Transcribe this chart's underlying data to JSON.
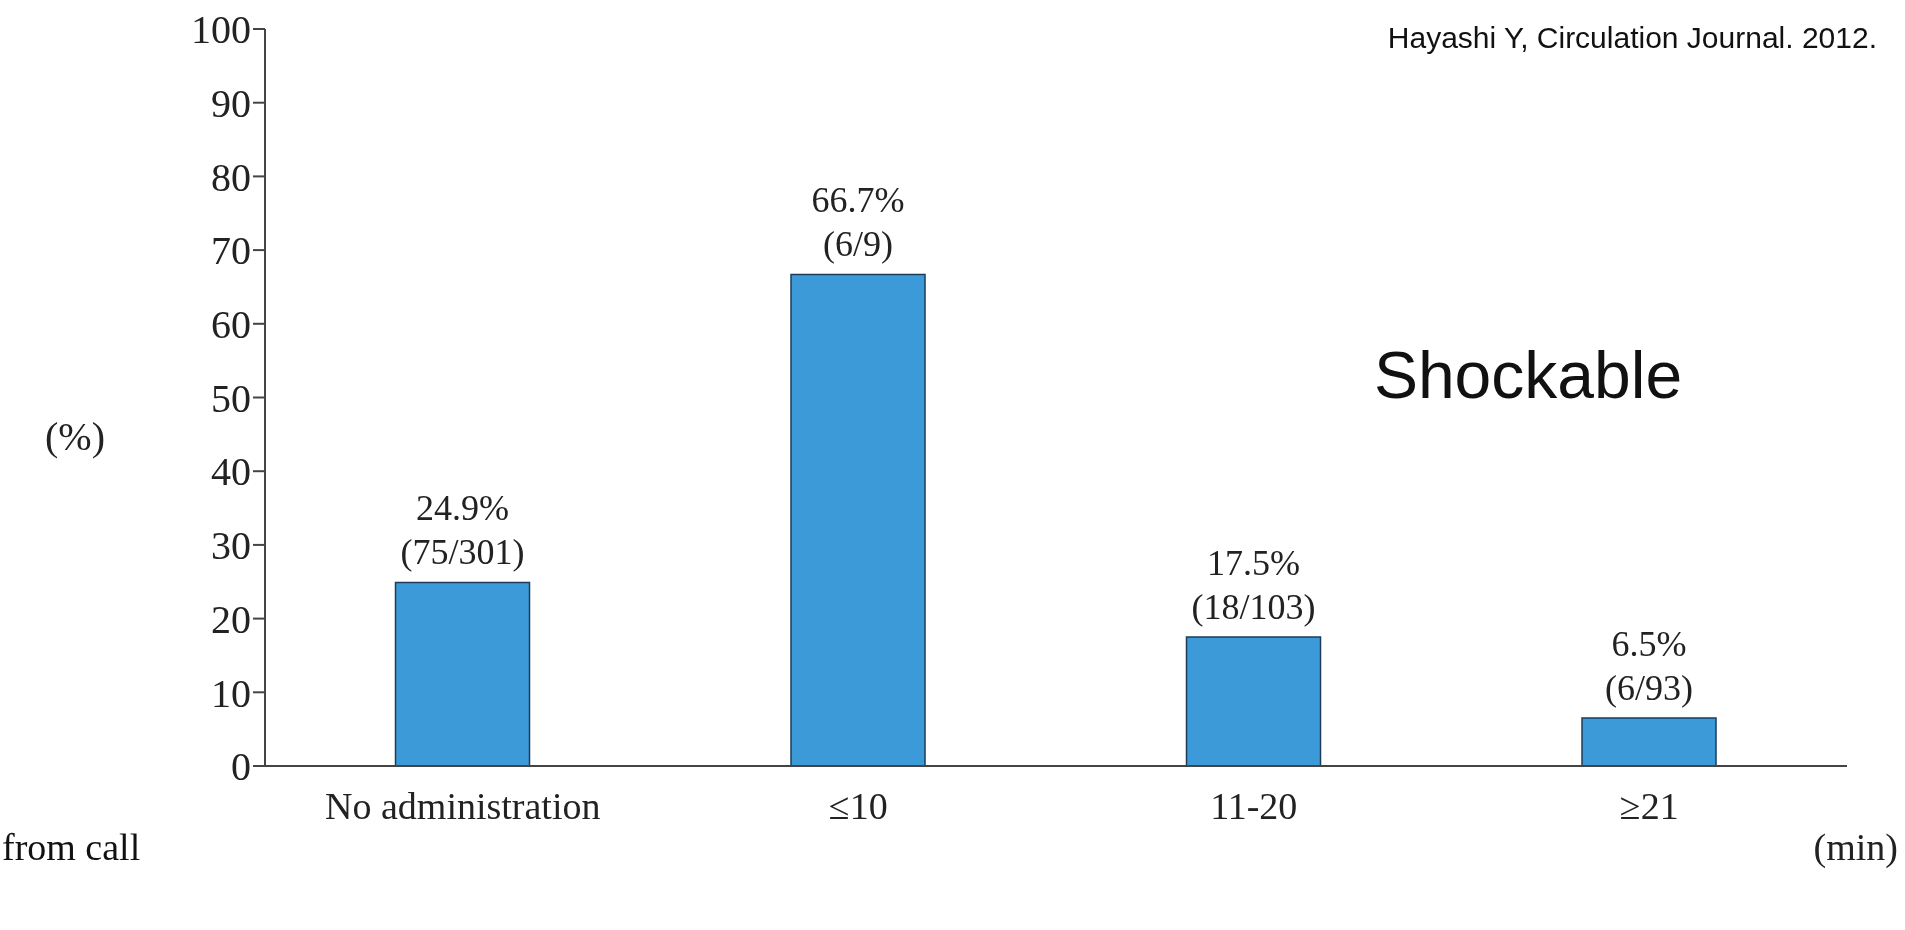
{
  "chart_data": {
    "type": "bar",
    "ylabel": "(%)",
    "xlabel": "(min)",
    "categories": [
      "No administration",
      "≤10",
      "11-20",
      "≥21"
    ],
    "values": [
      24.9,
      66.7,
      17.5,
      6.5
    ],
    "value_labels": [
      "24.9%\n(75/301)",
      "66.7%\n(6/9)",
      "17.5%\n(18/103)",
      "6.5%\n(6/93)"
    ],
    "color": "#3d9ad8",
    "ylim": [
      0,
      100
    ],
    "yticks": [
      0,
      10,
      20,
      30,
      40,
      50,
      60,
      70,
      80,
      90,
      100
    ],
    "grid": false,
    "legend": false,
    "annotations": [
      "Hayashi Y,  Circulation Journal. 2012.",
      "Shockable",
      "from call"
    ]
  }
}
